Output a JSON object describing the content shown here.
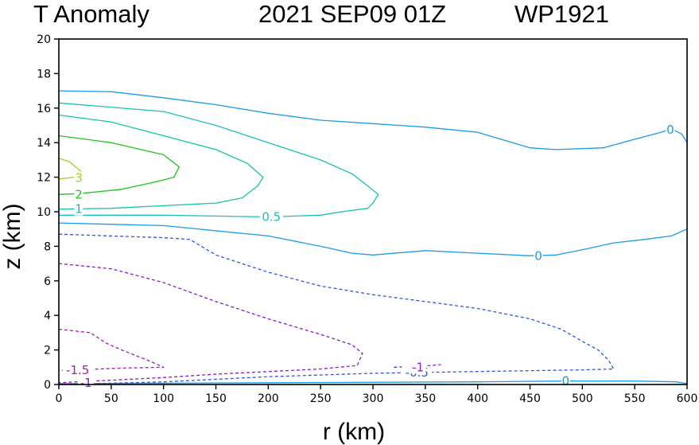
{
  "chart_data": {
    "type": "contour",
    "title": {
      "field": "T Anomaly",
      "datetime": "2021 SEP09 01Z",
      "storm": "WP1921"
    },
    "xlabel": "r (km)",
    "ylabel": "z (km)",
    "xlim": [
      0,
      600
    ],
    "ylim": [
      0,
      20
    ],
    "xticks": [
      "0",
      "50",
      "100",
      "150",
      "200",
      "250",
      "300",
      "350",
      "400",
      "450",
      "500",
      "550",
      "600"
    ],
    "yticks": [
      "0",
      "2",
      "4",
      "6",
      "8",
      "10",
      "12",
      "14",
      "16",
      "18",
      "20"
    ],
    "colors": {
      "zero": "#1a9be8",
      "half": "#19c0b8",
      "one": "#12c6a2",
      "two": "#22c21a",
      "three": "#9ed41c",
      "neg_half": "#2a56e6",
      "neg_one": "#8a18c8",
      "neg_one_half": "#a81ab4"
    },
    "contours": [
      {
        "level": "0",
        "color_key": "zero",
        "dashed": false,
        "points": [
          [
            0,
            17
          ],
          [
            50,
            16.95
          ],
          [
            100,
            16.6
          ],
          [
            150,
            16.2
          ],
          [
            200,
            15.7
          ],
          [
            250,
            15.3
          ],
          [
            300,
            15.1
          ],
          [
            350,
            14.9
          ],
          [
            400,
            14.6
          ],
          [
            450,
            13.7
          ],
          [
            475,
            13.6
          ],
          [
            520,
            13.7
          ],
          [
            550,
            14.2
          ],
          [
            575,
            14.6
          ],
          [
            585,
            14.8
          ],
          [
            595,
            14.5
          ],
          [
            600,
            14
          ]
        ]
      },
      {
        "level": "0",
        "color_key": "zero",
        "dashed": false,
        "points": [
          [
            0,
            9.35
          ],
          [
            100,
            9.2
          ],
          [
            200,
            8.6
          ],
          [
            250,
            8.0
          ],
          [
            280,
            7.6
          ],
          [
            300,
            7.5
          ],
          [
            350,
            7.75
          ],
          [
            400,
            7.6
          ],
          [
            450,
            7.45
          ],
          [
            475,
            7.5
          ],
          [
            500,
            7.8
          ],
          [
            530,
            8.2
          ],
          [
            560,
            8.4
          ],
          [
            585,
            8.6
          ],
          [
            600,
            9.0
          ]
        ]
      },
      {
        "level": "0",
        "color_key": "zero",
        "dashed": false,
        "points": [
          [
            0,
            0.05
          ],
          [
            200,
            0.1
          ],
          [
            400,
            0.15
          ],
          [
            480,
            0.2
          ],
          [
            550,
            0.2
          ],
          [
            590,
            0.15
          ],
          [
            600,
            0.05
          ]
        ]
      },
      {
        "level": "0.5",
        "color_key": "half",
        "dashed": false,
        "points": [
          [
            0,
            16.3
          ],
          [
            100,
            15.8
          ],
          [
            150,
            15.0
          ],
          [
            200,
            14.0
          ],
          [
            250,
            13.0
          ],
          [
            280,
            12.2
          ],
          [
            295,
            11.5
          ],
          [
            305,
            11.0
          ],
          [
            300,
            10.5
          ],
          [
            295,
            10.2
          ],
          [
            270,
            10.0
          ],
          [
            250,
            9.8
          ],
          [
            200,
            9.7
          ],
          [
            100,
            9.8
          ],
          [
            0,
            9.8
          ]
        ]
      },
      {
        "level": "1",
        "color_key": "one",
        "dashed": false,
        "points": [
          [
            0,
            15.6
          ],
          [
            50,
            15.2
          ],
          [
            100,
            14.4
          ],
          [
            150,
            13.6
          ],
          [
            180,
            12.8
          ],
          [
            195,
            12.0
          ],
          [
            190,
            11.5
          ],
          [
            175,
            10.8
          ],
          [
            150,
            10.5
          ],
          [
            100,
            10.35
          ],
          [
            50,
            10.2
          ],
          [
            0,
            10.15
          ]
        ]
      },
      {
        "level": "2",
        "color_key": "two",
        "dashed": false,
        "points": [
          [
            0,
            14.4
          ],
          [
            50,
            14.0
          ],
          [
            100,
            13.3
          ],
          [
            115,
            12.6
          ],
          [
            110,
            12.0
          ],
          [
            90,
            11.7
          ],
          [
            60,
            11.3
          ],
          [
            20,
            11.05
          ],
          [
            0,
            11.0
          ]
        ]
      },
      {
        "level": "3",
        "color_key": "three",
        "dashed": false,
        "points": [
          [
            0,
            13.1
          ],
          [
            10,
            12.9
          ],
          [
            20,
            12.4
          ],
          [
            22,
            12.2
          ],
          [
            15,
            12.0
          ],
          [
            0,
            11.9
          ]
        ]
      },
      {
        "level": "-0.5",
        "color_key": "neg_half",
        "dashed": true,
        "points": [
          [
            0,
            8.7
          ],
          [
            100,
            8.5
          ],
          [
            125,
            8.4
          ],
          [
            150,
            7.5
          ],
          [
            200,
            6.5
          ],
          [
            250,
            5.7
          ],
          [
            300,
            5.2
          ],
          [
            350,
            4.8
          ],
          [
            400,
            4.4
          ],
          [
            450,
            3.8
          ],
          [
            480,
            3.2
          ],
          [
            500,
            2.5
          ],
          [
            515,
            2.0
          ],
          [
            525,
            1.4
          ],
          [
            530,
            0.9
          ],
          [
            500,
            0.85
          ],
          [
            400,
            0.75
          ],
          [
            300,
            0.65
          ],
          [
            200,
            0.45
          ],
          [
            100,
            0.15
          ],
          [
            0,
            0.0
          ]
        ]
      },
      {
        "level": "-1",
        "color_key": "neg_one",
        "dashed": true,
        "points": [
          [
            0,
            7.0
          ],
          [
            50,
            6.7
          ],
          [
            100,
            5.9
          ],
          [
            150,
            4.8
          ],
          [
            200,
            3.8
          ],
          [
            250,
            2.9
          ],
          [
            280,
            2.3
          ],
          [
            290,
            1.8
          ],
          [
            285,
            1.1
          ],
          [
            250,
            0.9
          ],
          [
            150,
            0.6
          ],
          [
            100,
            0.4
          ],
          [
            50,
            0.25
          ],
          [
            0,
            0.1
          ]
        ]
      },
      {
        "level": "-1",
        "color_key": "neg_one",
        "dashed": true,
        "points": [
          [
            320,
            1.0
          ],
          [
            345,
            1.05
          ],
          [
            365,
            1.15
          ]
        ]
      },
      {
        "level": "-1.5",
        "color_key": "neg_one_half",
        "dashed": true,
        "points": [
          [
            0,
            3.2
          ],
          [
            30,
            3.0
          ],
          [
            45,
            2.4
          ],
          [
            60,
            2.0
          ],
          [
            85,
            1.4
          ],
          [
            100,
            1.0
          ],
          [
            60,
            0.95
          ],
          [
            20,
            0.85
          ],
          [
            0,
            0.8
          ]
        ]
      }
    ],
    "contour_labels": [
      {
        "text": "0",
        "r": 584,
        "z": 14.75,
        "color_key": "zero"
      },
      {
        "text": "0",
        "r": 458,
        "z": 7.45,
        "color_key": "zero"
      },
      {
        "text": "0",
        "r": 484,
        "z": 0.2,
        "color_key": "zero"
      },
      {
        "text": "0.5",
        "r": 203,
        "z": 9.7,
        "color_key": "half"
      },
      {
        "text": "1",
        "r": 19,
        "z": 10.15,
        "color_key": "one"
      },
      {
        "text": "2",
        "r": 19,
        "z": 11.0,
        "color_key": "two"
      },
      {
        "text": "3",
        "r": 19,
        "z": 11.95,
        "color_key": "three"
      },
      {
        "text": "-0.5",
        "r": 342,
        "z": 0.7,
        "color_key": "neg_half"
      },
      {
        "text": "-1",
        "r": 343,
        "z": 1.0,
        "color_key": "neg_one"
      },
      {
        "text": "-1",
        "r": 26,
        "z": 0.1,
        "color_key": "neg_one"
      },
      {
        "text": "-1.5",
        "r": 18,
        "z": 0.82,
        "color_key": "neg_one_half"
      }
    ]
  }
}
